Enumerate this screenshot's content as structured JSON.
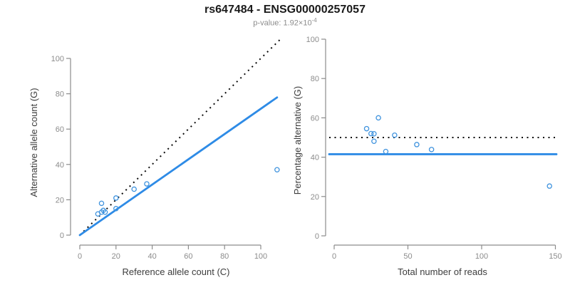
{
  "header": {
    "title": "rs647484 - ENSG00000257057",
    "subtitle_prefix": "p-value: ",
    "subtitle_base": "1.92×10",
    "subtitle_exponent": "-4"
  },
  "colors": {
    "line_blue": "#2e8be6",
    "point_blue": "#3f93de",
    "dotted_black": "#0a0a0a",
    "axis_gray": "#8c8c8c",
    "tick_label_gray": "#8c8c8c",
    "axis_title_dark": "#3d3d3d",
    "title_black": "#1a1a1a",
    "subtitle_gray": "#8c8c8c"
  },
  "chart_data": [
    {
      "type": "scatter",
      "panel": "left",
      "xlabel": "Reference allele count (C)",
      "ylabel": "Alternative allele count (G)",
      "xlim": [
        0,
        110
      ],
      "ylim": [
        0,
        110
      ],
      "xticks": [
        0,
        20,
        40,
        60,
        80,
        100
      ],
      "yticks": [
        0,
        20,
        40,
        60,
        80,
        100
      ],
      "grid": false,
      "points": [
        [
          10,
          12
        ],
        [
          12,
          13
        ],
        [
          12,
          18
        ],
        [
          13,
          14
        ],
        [
          14,
          13
        ],
        [
          20,
          21
        ],
        [
          20,
          15
        ],
        [
          30,
          26
        ],
        [
          37,
          29
        ],
        [
          109,
          37
        ]
      ],
      "identity_line": {
        "style": "dotted",
        "slope": 1,
        "intercept": 0
      },
      "fit_line": {
        "style": "solid",
        "slope": 0.715,
        "intercept": 0,
        "x_end": 109
      }
    },
    {
      "type": "scatter",
      "panel": "right",
      "xlabel": "Total number of reads",
      "ylabel": "Percentage alternative (G)",
      "xlim": [
        0,
        150
      ],
      "ylim": [
        0,
        100
      ],
      "xticks": [
        0,
        50,
        100,
        150
      ],
      "yticks": [
        0,
        20,
        40,
        60,
        80,
        100
      ],
      "grid": false,
      "points": [
        [
          22,
          54.5
        ],
        [
          25,
          52
        ],
        [
          30,
          60
        ],
        [
          27,
          51.9
        ],
        [
          27,
          48.1
        ],
        [
          41,
          51.2
        ],
        [
          35,
          42.9
        ],
        [
          56,
          46.4
        ],
        [
          66,
          43.9
        ],
        [
          146,
          25.3
        ]
      ],
      "reference_hline": {
        "style": "dotted",
        "y": 50
      },
      "fit_hline": {
        "style": "solid",
        "y": 41.5
      }
    }
  ]
}
